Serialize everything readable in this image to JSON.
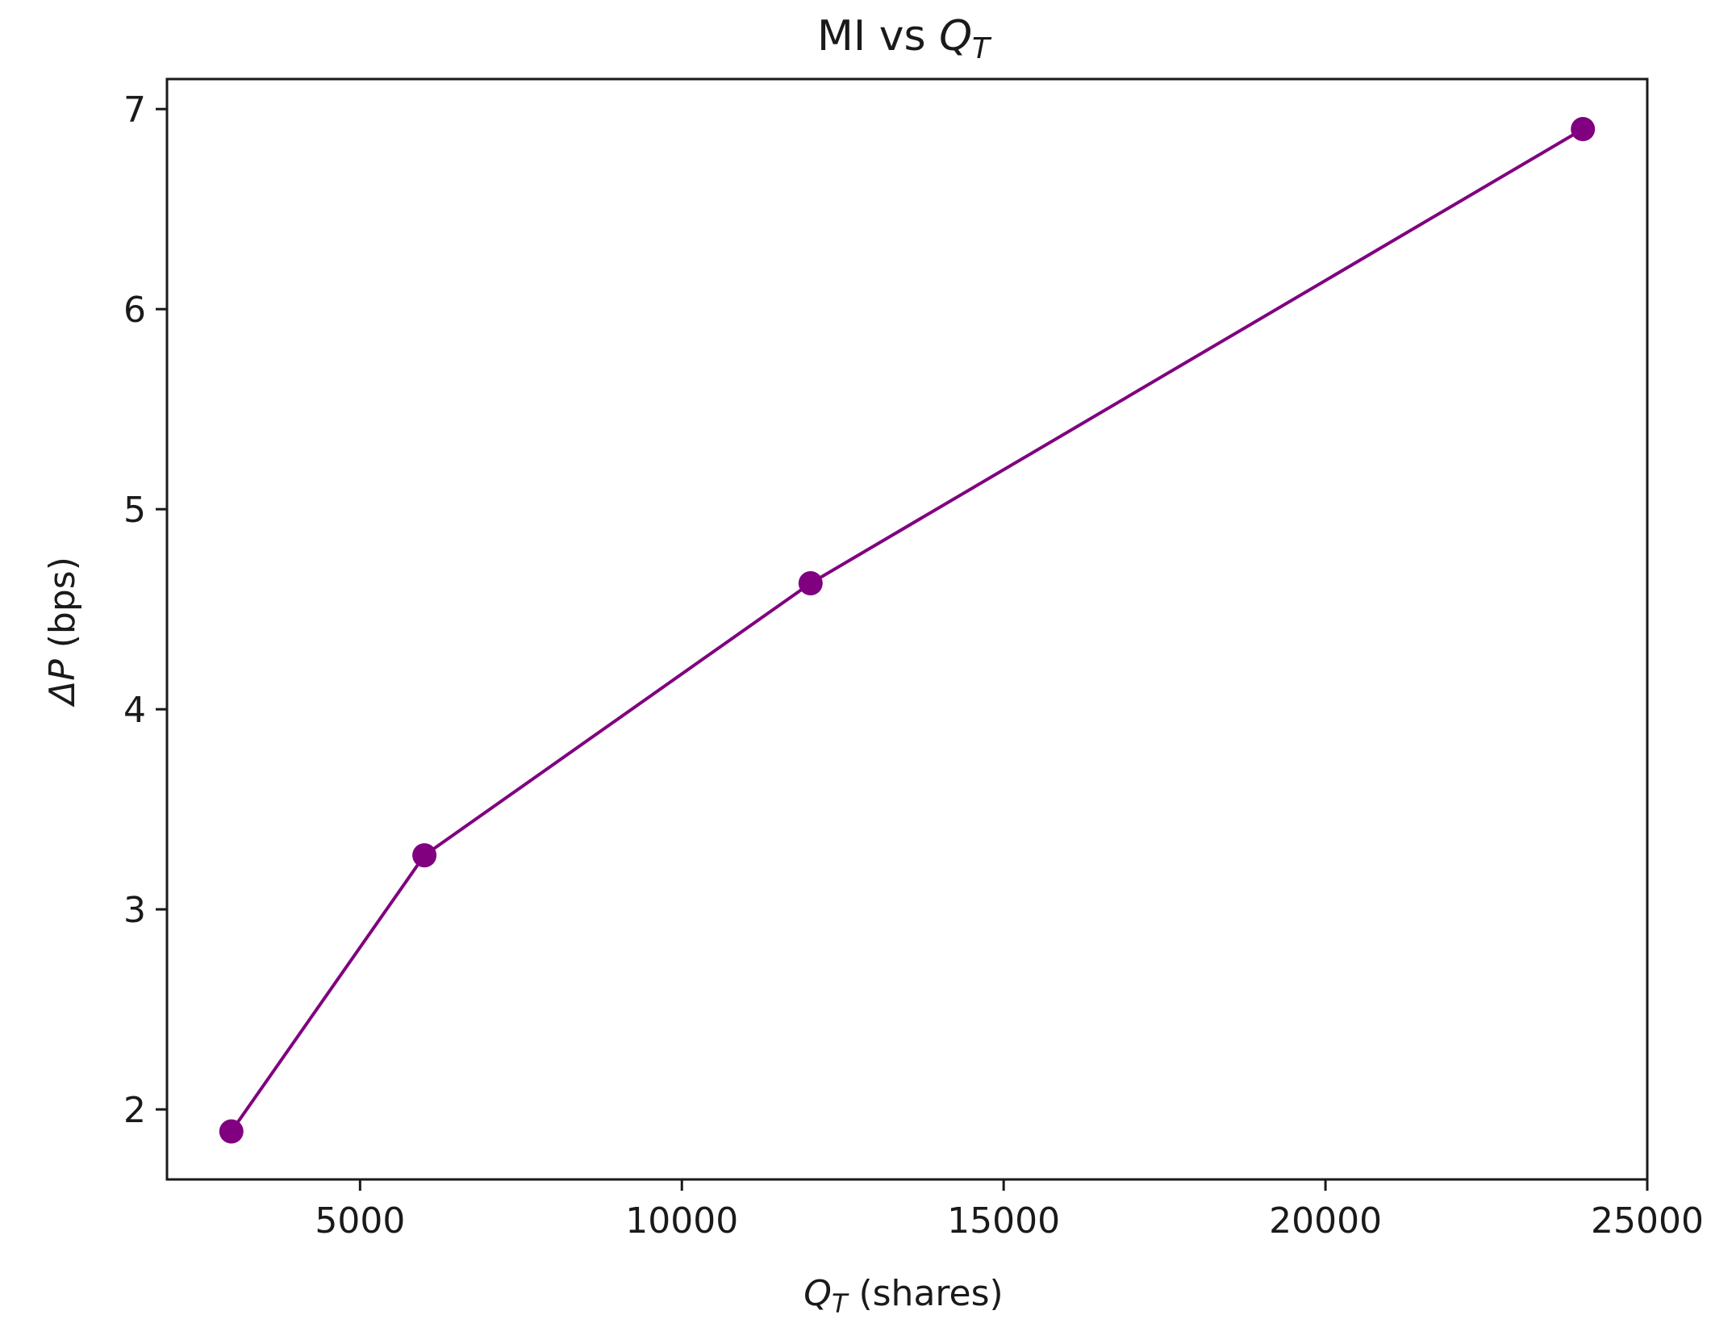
{
  "chart_data": {
    "type": "line",
    "title": "MI vs Q_T",
    "title_parts": {
      "prefix": "MI vs ",
      "symbol": "Q",
      "subscript": "T"
    },
    "xlabel": "Q_T (shares)",
    "xlabel_parts": {
      "symbol": "Q",
      "subscript": "T",
      "suffix": " (shares)"
    },
    "ylabel": "ΔP (bps)",
    "ylabel_parts": {
      "symbol": "ΔP",
      "suffix": " (bps)"
    },
    "xlim": [
      2000,
      25000
    ],
    "ylim": [
      1.65,
      7.15
    ],
    "xticks": [
      5000,
      10000,
      15000,
      20000,
      25000
    ],
    "xtick_labels": [
      "5000",
      "10000",
      "15000",
      "20000",
      "25000"
    ],
    "yticks": [
      2,
      3,
      4,
      5,
      6,
      7
    ],
    "ytick_labels": [
      "2",
      "3",
      "4",
      "5",
      "6",
      "7"
    ],
    "grid": false,
    "legend": "none",
    "series": [
      {
        "color": "#800080",
        "marker": "circle",
        "x": [
          3000,
          6000,
          12000,
          24000
        ],
        "y": [
          1.89,
          3.27,
          4.63,
          6.9
        ]
      }
    ]
  }
}
